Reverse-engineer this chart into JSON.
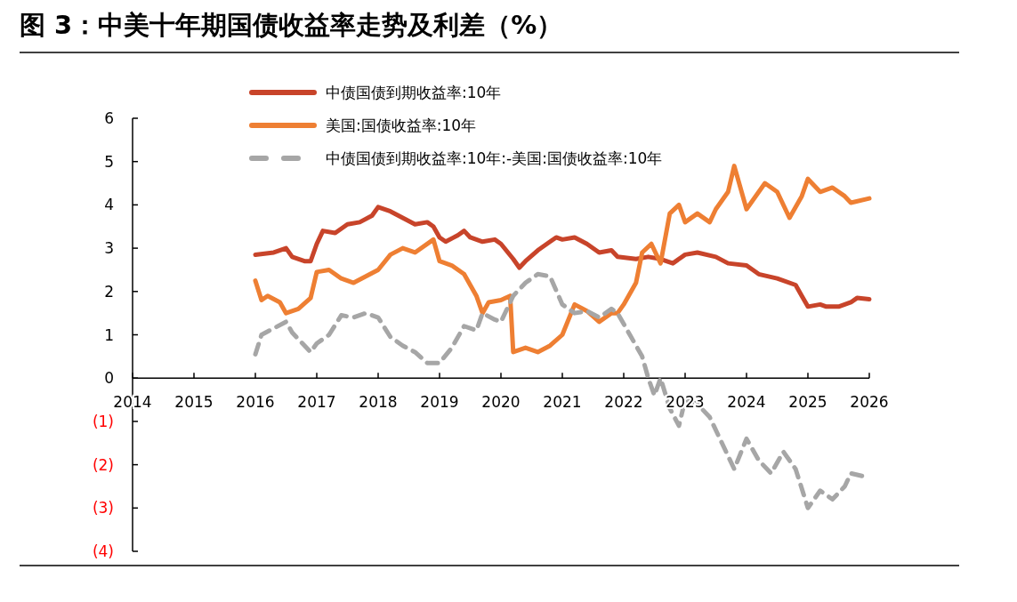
{
  "chart_data": {
    "type": "line",
    "title": "图 3：中美十年期国债收益率走势及利差（%）",
    "xlim": [
      2014,
      2026
    ],
    "xticks": [
      2014,
      2015,
      2016,
      2017,
      2018,
      2019,
      2020,
      2021,
      2022,
      2023,
      2024,
      2025,
      2026
    ],
    "ylim": [
      -4,
      6
    ],
    "yticks": [
      {
        "value": -4,
        "label": "(4)"
      },
      {
        "value": -3,
        "label": "(3)"
      },
      {
        "value": -2,
        "label": "(2)"
      },
      {
        "value": -1,
        "label": "(1)"
      },
      0,
      1,
      2,
      3,
      4,
      5,
      6
    ],
    "legend": "top",
    "grid": false,
    "marker": "none",
    "series": [
      {
        "name": "中债国债到期收益率:10年",
        "color": "#c8442a",
        "line_style": "solid",
        "x": [
          2016.0,
          2016.3,
          2016.5,
          2016.6,
          2016.8,
          2016.9,
          2017.0,
          2017.1,
          2017.3,
          2017.5,
          2017.7,
          2017.9,
          2018.0,
          2018.2,
          2018.4,
          2018.6,
          2018.8,
          2018.9,
          2019.0,
          2019.1,
          2019.3,
          2019.4,
          2019.5,
          2019.7,
          2019.9,
          2020.0,
          2020.2,
          2020.3,
          2020.4,
          2020.6,
          2020.8,
          2020.9,
          2021.0,
          2021.2,
          2021.4,
          2021.6,
          2021.8,
          2021.9,
          2022.2,
          2022.4,
          2022.6,
          2022.8,
          2023.0,
          2023.2,
          2023.5,
          2023.7,
          2024.0,
          2024.2,
          2024.5,
          2024.8,
          2024.9,
          2025.0,
          2025.2,
          2025.3,
          2025.5,
          2025.7,
          2025.8,
          2026.0
        ],
        "values": [
          2.85,
          2.9,
          3.0,
          2.8,
          2.7,
          2.7,
          3.1,
          3.4,
          3.35,
          3.55,
          3.6,
          3.75,
          3.95,
          3.85,
          3.7,
          3.55,
          3.6,
          3.5,
          3.25,
          3.15,
          3.3,
          3.4,
          3.25,
          3.15,
          3.2,
          3.1,
          2.75,
          2.55,
          2.7,
          2.95,
          3.15,
          3.25,
          3.2,
          3.25,
          3.1,
          2.9,
          2.95,
          2.8,
          2.75,
          2.8,
          2.75,
          2.65,
          2.85,
          2.9,
          2.8,
          2.65,
          2.6,
          2.4,
          2.3,
          2.15,
          1.9,
          1.65,
          1.7,
          1.65,
          1.65,
          1.75,
          1.85,
          1.82
        ]
      },
      {
        "name": "美国:国债收益率:10年",
        "color": "#ee7f33",
        "line_style": "solid",
        "x": [
          2016.0,
          2016.1,
          2016.2,
          2016.4,
          2016.5,
          2016.7,
          2016.9,
          2017.0,
          2017.2,
          2017.4,
          2017.6,
          2017.8,
          2018.0,
          2018.2,
          2018.4,
          2018.6,
          2018.9,
          2019.0,
          2019.2,
          2019.4,
          2019.6,
          2019.7,
          2019.8,
          2020.0,
          2020.15,
          2020.2,
          2020.4,
          2020.6,
          2020.8,
          2021.0,
          2021.2,
          2021.4,
          2021.6,
          2021.8,
          2021.9,
          2022.0,
          2022.2,
          2022.3,
          2022.45,
          2022.6,
          2022.75,
          2022.9,
          2023.0,
          2023.2,
          2023.4,
          2023.5,
          2023.7,
          2023.8,
          2024.0,
          2024.1,
          2024.3,
          2024.5,
          2024.7,
          2024.9,
          2025.0,
          2025.2,
          2025.4,
          2025.6,
          2025.7,
          2026.0
        ],
        "values": [
          2.25,
          1.8,
          1.9,
          1.75,
          1.5,
          1.6,
          1.85,
          2.45,
          2.5,
          2.3,
          2.2,
          2.35,
          2.5,
          2.85,
          3.0,
          2.9,
          3.2,
          2.7,
          2.6,
          2.4,
          1.9,
          1.5,
          1.75,
          1.8,
          1.9,
          0.6,
          0.7,
          0.6,
          0.75,
          1.0,
          1.7,
          1.55,
          1.3,
          1.5,
          1.5,
          1.7,
          2.2,
          2.9,
          3.1,
          2.65,
          3.8,
          4.0,
          3.6,
          3.8,
          3.6,
          3.9,
          4.3,
          4.9,
          3.9,
          4.1,
          4.5,
          4.3,
          3.7,
          4.2,
          4.6,
          4.3,
          4.4,
          4.2,
          4.05,
          4.15
        ]
      },
      {
        "name": "中债国债到期收益率:10年:-美国:国债收益率:10年",
        "color": "#a6a6a6",
        "line_style": "dashed",
        "x": [
          2016.0,
          2016.1,
          2016.3,
          2016.5,
          2016.6,
          2016.9,
          2017.0,
          2017.2,
          2017.4,
          2017.6,
          2017.8,
          2018.0,
          2018.2,
          2018.4,
          2018.6,
          2018.8,
          2019.0,
          2019.2,
          2019.4,
          2019.6,
          2019.7,
          2019.9,
          2020.0,
          2020.2,
          2020.4,
          2020.6,
          2020.8,
          2021.0,
          2021.2,
          2021.4,
          2021.6,
          2021.8,
          2021.9,
          2022.1,
          2022.3,
          2022.4,
          2022.5,
          2022.6,
          2022.75,
          2022.9,
          2023.0,
          2023.2,
          2023.4,
          2023.6,
          2023.8,
          2024.0,
          2024.2,
          2024.4,
          2024.6,
          2024.8,
          2025.0,
          2025.2,
          2025.4,
          2025.6,
          2025.7,
          2026.0
        ],
        "values": [
          0.55,
          1.0,
          1.15,
          1.3,
          1.05,
          0.6,
          0.8,
          1.0,
          1.45,
          1.4,
          1.5,
          1.4,
          0.95,
          0.75,
          0.6,
          0.35,
          0.35,
          0.7,
          1.2,
          1.1,
          1.5,
          1.35,
          1.3,
          1.9,
          2.2,
          2.4,
          2.35,
          1.7,
          1.5,
          1.55,
          1.4,
          1.6,
          1.5,
          1.0,
          0.5,
          0.0,
          -0.4,
          0.0,
          -0.7,
          -1.1,
          -0.5,
          -0.6,
          -0.9,
          -1.5,
          -2.1,
          -1.4,
          -1.9,
          -2.2,
          -1.7,
          -2.1,
          -3.0,
          -2.6,
          -2.8,
          -2.5,
          -2.2,
          -2.3
        ]
      }
    ]
  }
}
